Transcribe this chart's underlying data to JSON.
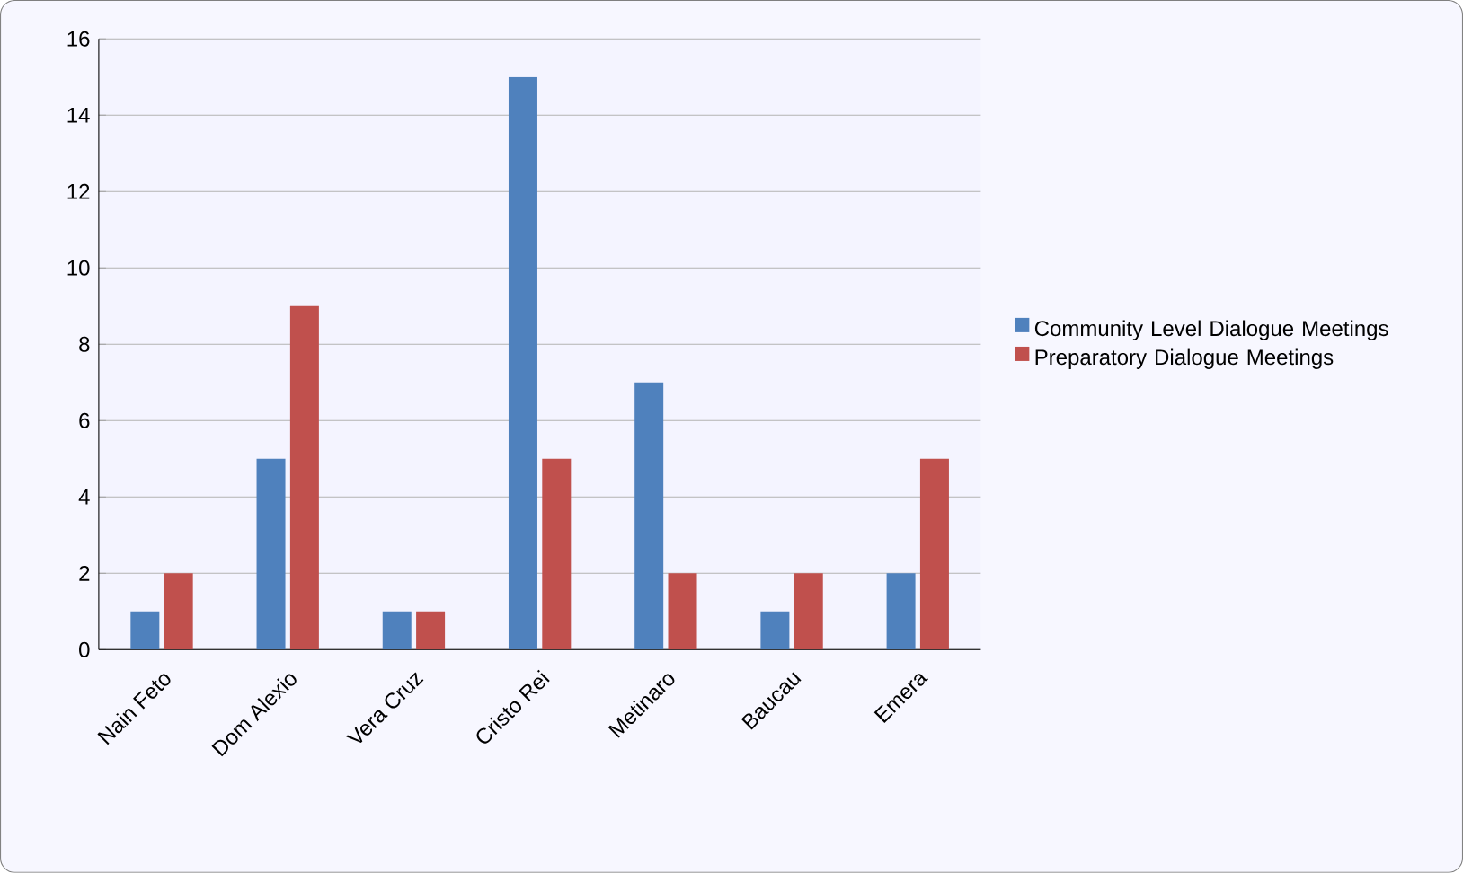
{
  "chart_data": {
    "type": "bar",
    "categories": [
      "Nain Feto",
      "Dom Alexio",
      "Vera Cruz",
      "Cristo Rei",
      "Metinaro",
      "Baucau",
      "Emera"
    ],
    "series": [
      {
        "name": "Community Level Dialogue Meetings",
        "color": "#4f81bd",
        "values": [
          1,
          5,
          1,
          15,
          7,
          1,
          2
        ]
      },
      {
        "name": "Preparatory Dialogue Meetings",
        "color": "#c0504d",
        "values": [
          2,
          9,
          1,
          5,
          2,
          2,
          5
        ]
      }
    ],
    "ylim": [
      0,
      16
    ],
    "yticks": [
      0,
      2,
      4,
      6,
      8,
      10,
      12,
      14,
      16
    ],
    "grid": "y",
    "legend": "right"
  }
}
